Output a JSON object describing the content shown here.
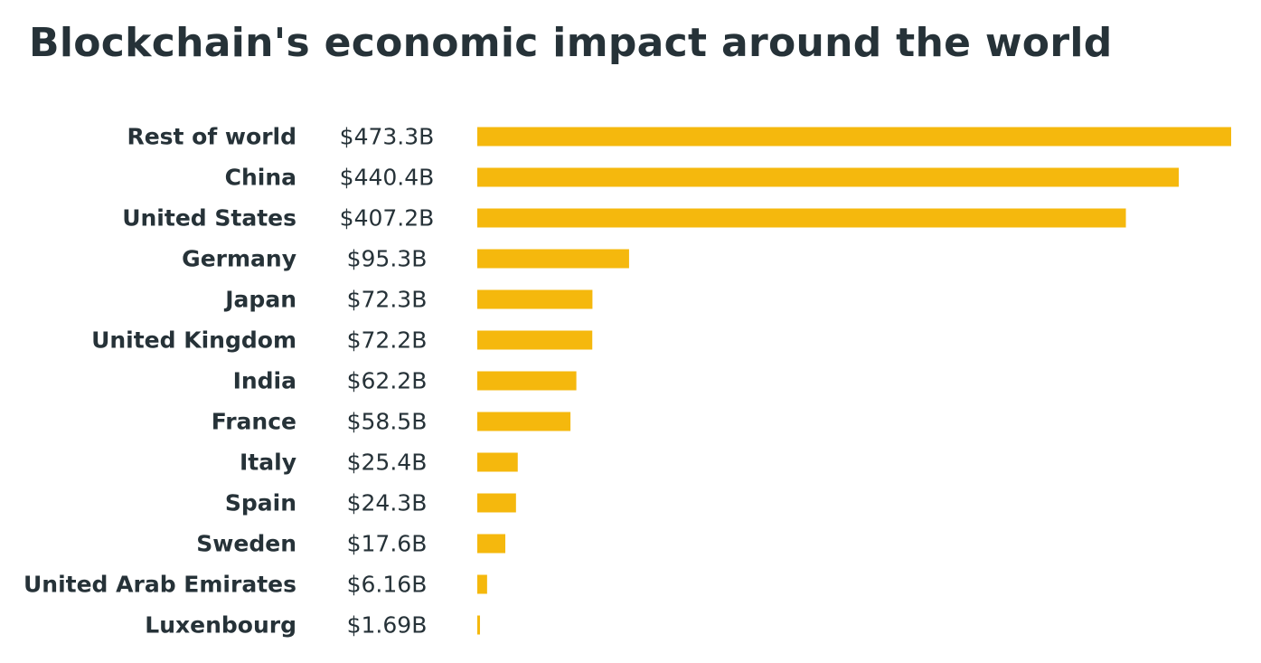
{
  "title": "Blockchain's economic impact around the world",
  "colors": {
    "bar": "#F5B80D",
    "text": "#263238",
    "background": "#FFFFFF"
  },
  "chart_data": {
    "type": "bar",
    "orientation": "horizontal",
    "title": "Blockchain's economic impact around the world",
    "xlabel": "",
    "ylabel": "",
    "unit": "B",
    "grid": false,
    "categories": [
      "Rest of world",
      "China",
      "United States",
      "Germany",
      "Japan",
      "United Kingdom",
      "India",
      "France",
      "Italy",
      "Spain",
      "Sweden",
      "United Arab Emirates",
      "Luxenbourg"
    ],
    "values": [
      473.3,
      440.4,
      407.2,
      95.3,
      72.3,
      72.2,
      62.2,
      58.5,
      25.4,
      24.3,
      17.6,
      6.16,
      1.69
    ],
    "value_labels": [
      "$473.3B",
      "$440.4B",
      "$407.2B",
      "$95.3B",
      "$72.3B",
      "$72.2B",
      "$62.2B",
      "$58.5B",
      "$25.4B",
      "$24.3B",
      "$17.6B",
      "$6.16B",
      "$1.69B"
    ],
    "xlim": [
      0,
      473.3
    ]
  }
}
